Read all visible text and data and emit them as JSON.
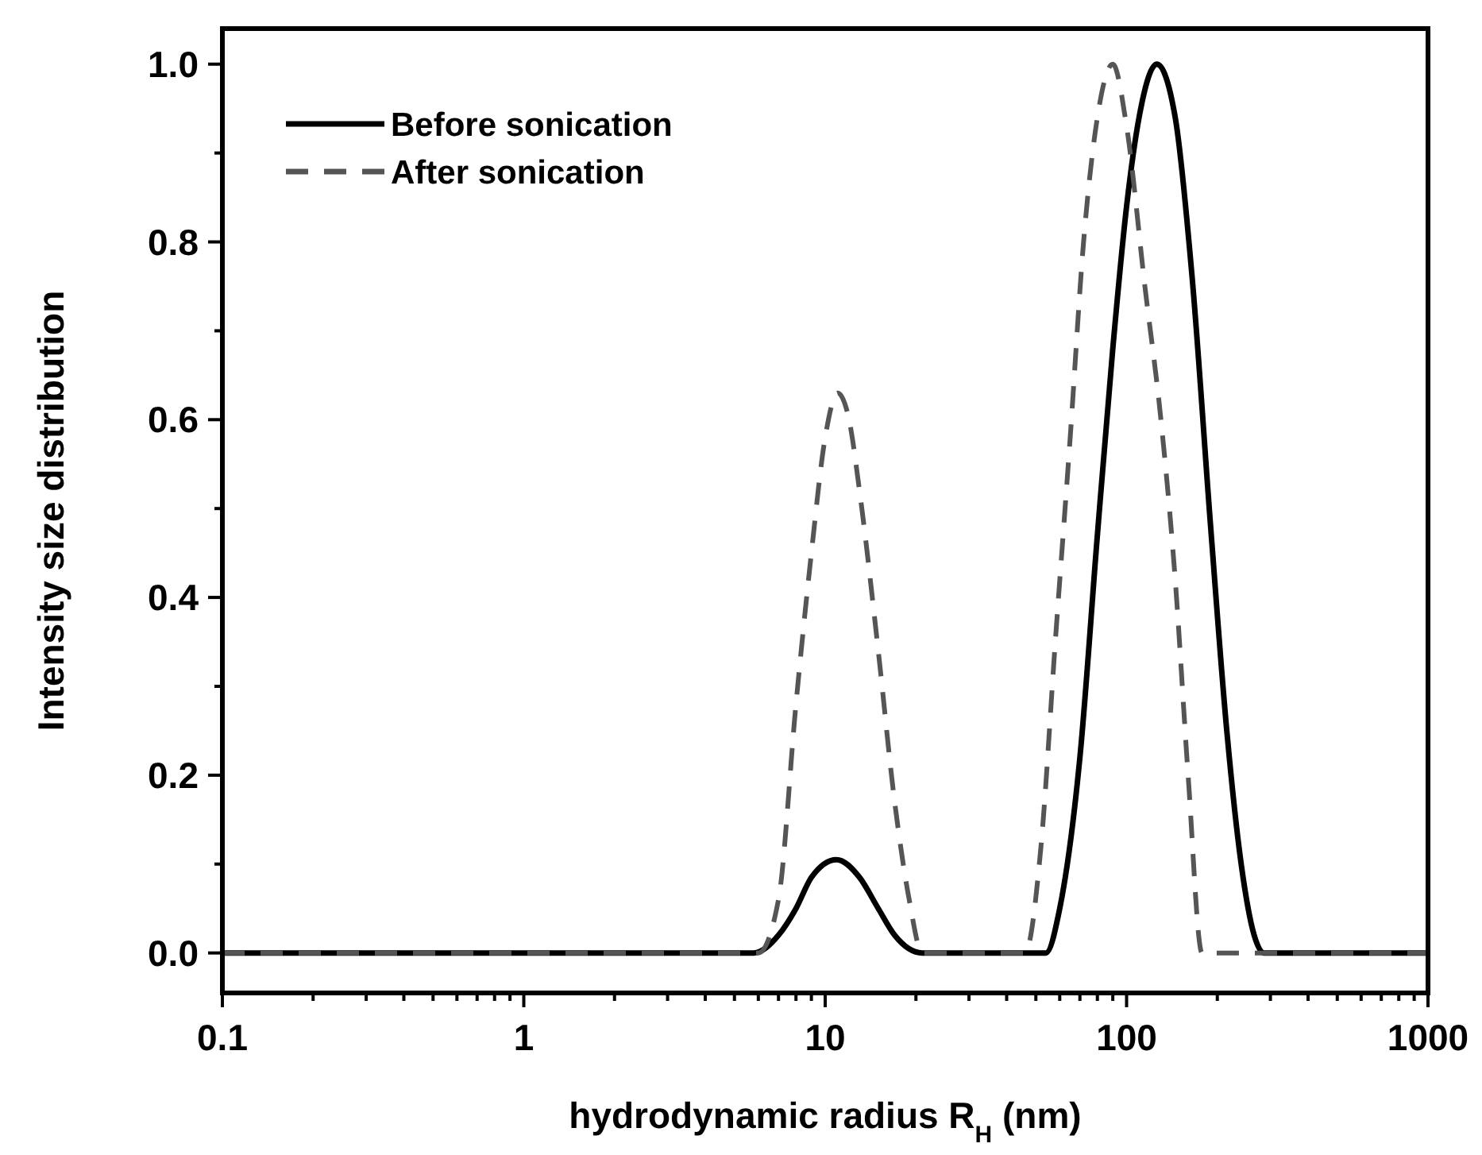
{
  "chart_data": {
    "type": "line",
    "xlabel": "hydrodynamic radius R$_{H}$ (nm)",
    "ylabel": "Intensity size distribution",
    "log": "x",
    "xlim": [
      0.1,
      1000
    ],
    "ylim": [
      -0.045,
      1.04
    ],
    "legend": "top left",
    "grid": false,
    "xticks": [
      0.1,
      {
        "value": 0.2,
        "label": null
      },
      {
        "value": 0.3,
        "label": null
      },
      {
        "value": 0.4,
        "label": null
      },
      {
        "value": 0.5,
        "label": null
      },
      {
        "value": 0.6,
        "label": null
      },
      {
        "value": 0.7,
        "label": null
      },
      {
        "value": 0.8,
        "label": null
      },
      {
        "value": 0.9,
        "label": null
      },
      1,
      {
        "value": 2,
        "label": null
      },
      {
        "value": 3,
        "label": null
      },
      {
        "value": 4,
        "label": null
      },
      {
        "value": 5,
        "label": null
      },
      {
        "value": 6,
        "label": null
      },
      {
        "value": 7,
        "label": null
      },
      {
        "value": 8,
        "label": null
      },
      {
        "value": 9,
        "label": null
      },
      10,
      {
        "value": 20,
        "label": null
      },
      {
        "value": 30,
        "label": null
      },
      {
        "value": 40,
        "label": null
      },
      {
        "value": 50,
        "label": null
      },
      {
        "value": 60,
        "label": null
      },
      {
        "value": 70,
        "label": null
      },
      {
        "value": 80,
        "label": null
      },
      {
        "value": 90,
        "label": null
      },
      100,
      {
        "value": 200,
        "label": null
      },
      {
        "value": 300,
        "label": null
      },
      {
        "value": 400,
        "label": null
      },
      {
        "value": 500,
        "label": null
      },
      {
        "value": 600,
        "label": null
      },
      {
        "value": 700,
        "label": null
      },
      {
        "value": 800,
        "label": null
      },
      {
        "value": 900,
        "label": null
      },
      1000
    ],
    "yticks": [
      {
        "value": 0,
        "label": "0.0"
      },
      {
        "value": 0.1,
        "label": null
      },
      0.2,
      {
        "value": 0.3,
        "label": null
      },
      0.4,
      {
        "value": 0.5,
        "label": null
      },
      0.6,
      {
        "value": 0.7,
        "label": null
      },
      0.8,
      {
        "value": 0.9,
        "label": null
      },
      {
        "value": 1,
        "label": "1.0"
      }
    ],
    "series": [
      {
        "name": "Before sonication",
        "color": "#000000",
        "line_style": "solid",
        "x": [
          0.1,
          1,
          5.8,
          7,
          8,
          9,
          10.9,
          13,
          15,
          17,
          21,
          54,
          60,
          70,
          80,
          90,
          100,
          110,
          126,
          145,
          165,
          190,
          215,
          240,
          265,
          285,
          1000
        ],
        "values": [
          0,
          0,
          0,
          0.02,
          0.05,
          0.085,
          0.105,
          0.085,
          0.05,
          0.02,
          0,
          0,
          0.05,
          0.22,
          0.47,
          0.68,
          0.84,
          0.94,
          1.0,
          0.94,
          0.76,
          0.48,
          0.25,
          0.1,
          0.02,
          0,
          0
        ]
      },
      {
        "name": "After sonication",
        "color": "#555555",
        "line_style": "dashed",
        "x": [
          0.1,
          1,
          6,
          7,
          8,
          9,
          10,
          11,
          12,
          13,
          15,
          17,
          19,
          21,
          46,
          52,
          58,
          65,
          72,
          80,
          90,
          100,
          115,
          130,
          145,
          160,
          178,
          1000
        ],
        "values": [
          0,
          0,
          0,
          0.06,
          0.28,
          0.45,
          0.58,
          0.63,
          0.6,
          0.52,
          0.34,
          0.17,
          0.06,
          0,
          0,
          0.12,
          0.35,
          0.58,
          0.8,
          0.94,
          1.0,
          0.93,
          0.75,
          0.6,
          0.42,
          0.2,
          0,
          0
        ]
      }
    ]
  }
}
